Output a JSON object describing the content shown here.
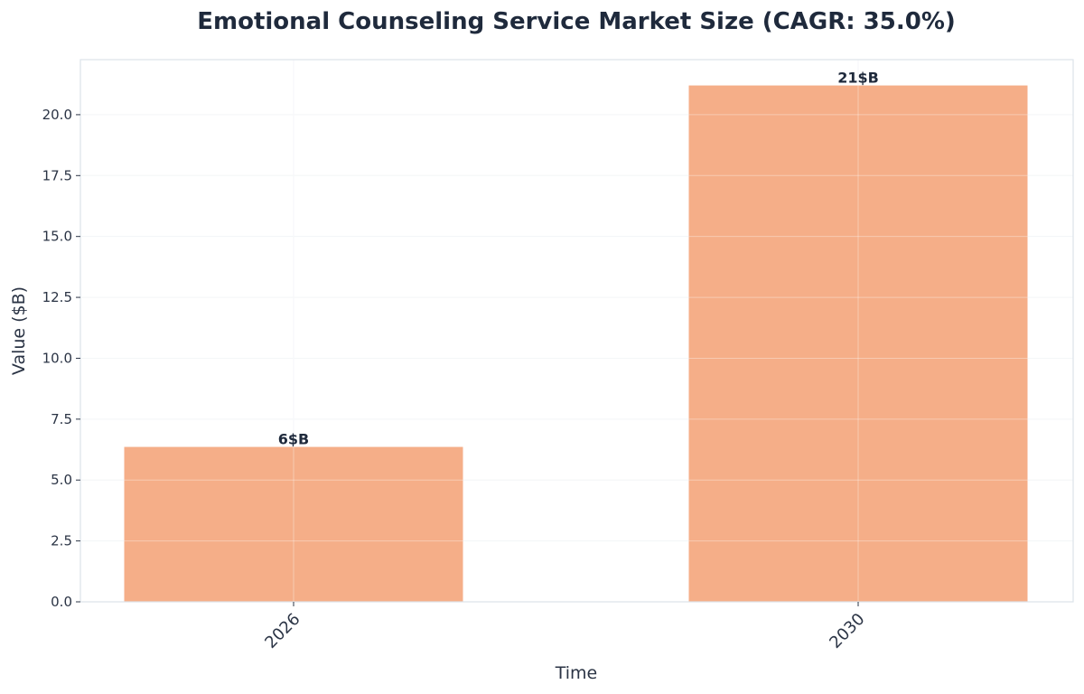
{
  "chart_data": {
    "type": "bar",
    "title": "Emotional Counseling Service Market Size (CAGR: 35.0%)",
    "xlabel": "Time",
    "ylabel": "Value ($B)",
    "categories": [
      "2026",
      "2030"
    ],
    "values": [
      6.36,
      21.2
    ],
    "data_labels": [
      "6$B",
      "21$B"
    ],
    "ylim": [
      0,
      22.26
    ],
    "yticks": [
      "0.0",
      "2.5",
      "5.0",
      "7.5",
      "10.0",
      "12.5",
      "15.0",
      "17.5",
      "20.0"
    ],
    "grid": true,
    "legend": "none",
    "colors": {
      "bar": "#f5ae88",
      "text": "#1f2a3c",
      "grid": "#eef1f4",
      "spine": "#dde3ea"
    }
  }
}
